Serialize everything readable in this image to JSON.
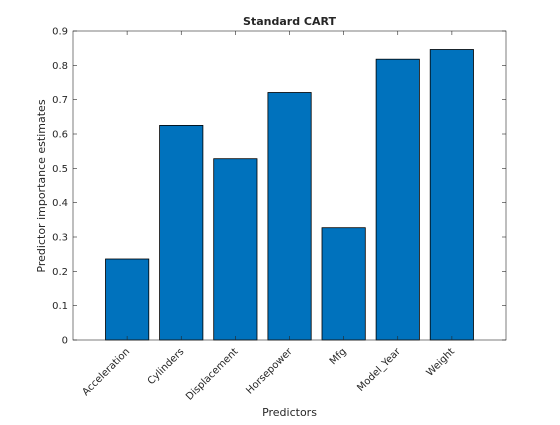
{
  "chart_data": {
    "type": "bar",
    "title": "Standard CART",
    "xlabel": "Predictors",
    "ylabel": "Predictor importance estimates",
    "categories": [
      "Acceleration",
      "Cylinders",
      "Displacement",
      "Horsepower",
      "Mfg",
      "Model_Year",
      "Weight"
    ],
    "values": [
      0.236,
      0.625,
      0.528,
      0.721,
      0.327,
      0.818,
      0.846
    ],
    "ylim": [
      0,
      0.9
    ],
    "yticks": [
      0,
      0.1,
      0.2,
      0.3,
      0.4,
      0.5,
      0.6,
      0.7,
      0.8,
      0.9
    ],
    "ytick_labels": [
      "0",
      "0.1",
      "0.2",
      "0.3",
      "0.4",
      "0.5",
      "0.6",
      "0.7",
      "0.8",
      "0.9"
    ],
    "bar_color": "#0072BD",
    "grid": false,
    "legend": "none"
  }
}
